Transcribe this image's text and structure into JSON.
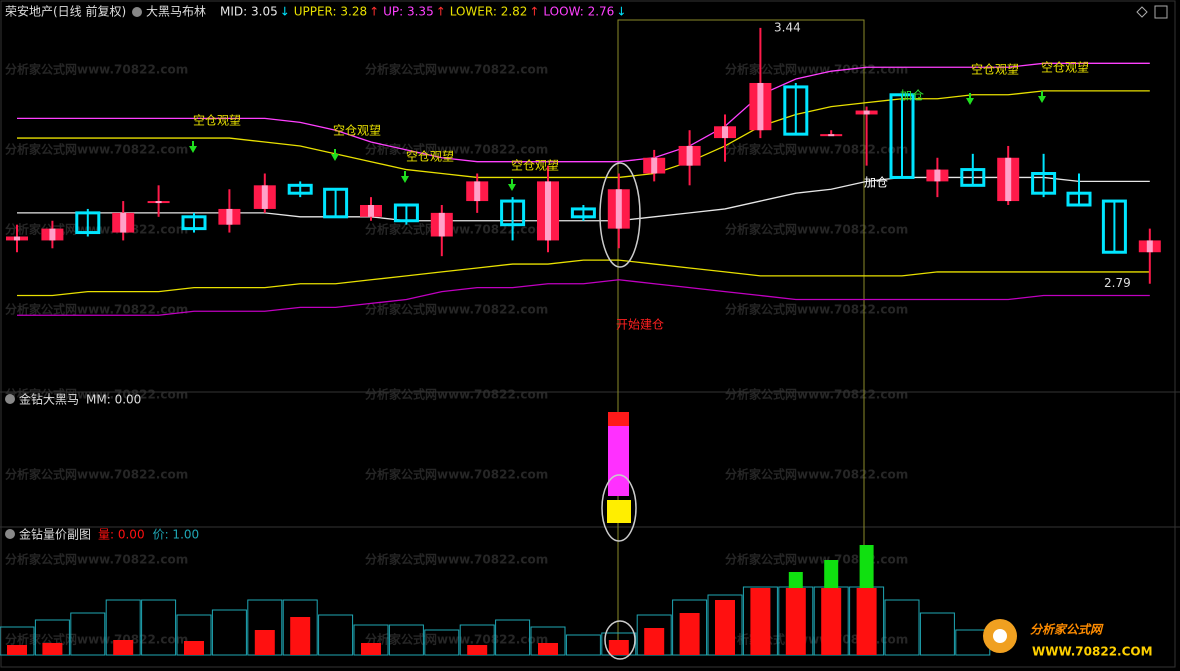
{
  "header": {
    "stock": "荣安地产(日线 前复权)",
    "indicator": "大黑马布林"
  },
  "watermark": "分析家公式网www.70822.com",
  "logo": {
    "name": "分析家公式网",
    "url": "WWW.70822.COM"
  },
  "chart_data": [
    {
      "type": "candlestick",
      "ylim": [
        2.52,
        3.46
      ],
      "high_label": 3.44,
      "low_label": 2.79,
      "open": [
        2.9,
        2.9,
        2.97,
        2.92,
        3.0,
        2.96,
        2.94,
        2.98,
        3.04,
        3.03,
        2.96,
        2.99,
        2.91,
        3.0,
        3.0,
        2.9,
        2.98,
        2.93,
        3.07,
        3.09,
        3.16,
        3.18,
        3.29,
        3.17,
        3.22,
        3.27,
        3.05,
        3.08,
        3.0,
        3.07,
        3.02,
        3.0,
        2.87
      ],
      "high": [
        2.94,
        2.95,
        2.98,
        3.0,
        3.04,
        2.97,
        3.03,
        3.07,
        3.05,
        3.03,
        3.01,
        2.99,
        2.99,
        3.07,
        3.01,
        3.09,
        2.99,
        3.07,
        3.13,
        3.18,
        3.22,
        3.44,
        3.3,
        3.18,
        3.24,
        3.27,
        3.11,
        3.12,
        3.14,
        3.12,
        3.07,
        3.0,
        2.93
      ],
      "low": [
        2.87,
        2.88,
        2.91,
        2.9,
        2.96,
        2.92,
        2.92,
        2.97,
        3.01,
        2.96,
        2.95,
        2.94,
        2.86,
        2.97,
        2.9,
        2.87,
        2.95,
        2.88,
        3.05,
        3.04,
        3.1,
        3.16,
        3.17,
        3.17,
        3.09,
        3.06,
        3.01,
        3.04,
        2.99,
        3.01,
        2.99,
        2.87,
        2.79
      ],
      "close": [
        2.91,
        2.93,
        2.92,
        2.97,
        3.0,
        2.93,
        2.98,
        3.04,
        3.02,
        2.96,
        2.99,
        2.95,
        2.97,
        3.05,
        2.94,
        3.05,
        2.96,
        3.03,
        3.11,
        3.14,
        3.19,
        3.3,
        3.17,
        3.17,
        3.23,
        3.06,
        3.08,
        3.04,
        3.11,
        3.02,
        2.99,
        2.87,
        2.9
      ],
      "up_color": "#ff1a4a",
      "down_color": "#00e5ff",
      "series": [
        {
          "label": "MID: 3.05",
          "arrow": "↓",
          "arrow_color": "#00e5ff",
          "color": "#e6e6e6",
          "values": [
            2.97,
            2.97,
            2.97,
            2.97,
            2.97,
            2.97,
            2.97,
            2.97,
            2.96,
            2.96,
            2.96,
            2.95,
            2.95,
            2.95,
            2.95,
            2.95,
            2.95,
            2.95,
            2.96,
            2.97,
            2.98,
            3.0,
            3.02,
            3.03,
            3.05,
            3.06,
            3.06,
            3.06,
            3.06,
            3.06,
            3.05,
            3.05,
            3.05
          ]
        },
        {
          "label": "UPPER: 3.28",
          "arrow": "↑",
          "arrow_color": "#ff3030",
          "color": "#e8e000",
          "values": [
            3.16,
            3.16,
            3.16,
            3.16,
            3.16,
            3.16,
            3.16,
            3.15,
            3.14,
            3.12,
            3.1,
            3.08,
            3.07,
            3.06,
            3.06,
            3.06,
            3.06,
            3.06,
            3.07,
            3.1,
            3.14,
            3.19,
            3.22,
            3.24,
            3.25,
            3.26,
            3.26,
            3.27,
            3.27,
            3.28,
            3.28,
            3.28,
            3.28
          ]
        },
        {
          "label": "UP: 3.35",
          "arrow": "↑",
          "arrow_color": "#ff3030",
          "color": "#ff40ff",
          "values": [
            3.21,
            3.21,
            3.21,
            3.21,
            3.21,
            3.21,
            3.21,
            3.21,
            3.2,
            3.18,
            3.15,
            3.13,
            3.11,
            3.1,
            3.1,
            3.1,
            3.1,
            3.1,
            3.11,
            3.14,
            3.19,
            3.27,
            3.31,
            3.33,
            3.34,
            3.34,
            3.34,
            3.34,
            3.34,
            3.35,
            3.35,
            3.35,
            3.35
          ]
        },
        {
          "label": "LOWER: 2.82",
          "arrow": "↑",
          "arrow_color": "#ff3030",
          "color": "#e8e000",
          "values": [
            2.76,
            2.76,
            2.77,
            2.77,
            2.77,
            2.78,
            2.78,
            2.78,
            2.79,
            2.79,
            2.8,
            2.81,
            2.82,
            2.83,
            2.84,
            2.84,
            2.85,
            2.85,
            2.84,
            2.83,
            2.82,
            2.81,
            2.81,
            2.81,
            2.81,
            2.81,
            2.82,
            2.82,
            2.82,
            2.82,
            2.82,
            2.82,
            2.82
          ]
        },
        {
          "label": "LOOW: 2.76",
          "arrow": "↓",
          "arrow_color": "#00e5ff",
          "color": "#c000c0",
          "values": [
            2.71,
            2.71,
            2.71,
            2.71,
            2.71,
            2.72,
            2.72,
            2.72,
            2.73,
            2.73,
            2.74,
            2.75,
            2.77,
            2.78,
            2.78,
            2.79,
            2.79,
            2.8,
            2.79,
            2.78,
            2.77,
            2.76,
            2.75,
            2.75,
            2.75,
            2.75,
            2.75,
            2.75,
            2.75,
            2.76,
            2.76,
            2.76,
            2.76
          ]
        }
      ],
      "annotations": [
        "空仓观望",
        "空仓观望",
        "空仓观望",
        "空仓观望",
        "空仓观望",
        "空仓观望",
        "开始建仓",
        "加仓",
        "加仓"
      ]
    },
    {
      "type": "signal",
      "title": "金钻大黑马",
      "label": "MM: 0.00"
    },
    {
      "type": "volume",
      "title": "金钻量价副图",
      "ylim": [
        0,
        110
      ],
      "series": [
        {
          "name": "量: 0.00",
          "color": "#ff1010",
          "values": [
            10,
            12,
            null,
            15,
            null,
            14,
            null,
            25,
            38,
            null,
            12,
            null,
            null,
            10,
            null,
            12,
            null,
            15,
            27,
            42,
            55,
            67,
            67,
            67,
            67,
            null,
            null,
            null,
            null,
            null,
            null,
            null,
            null
          ]
        },
        {
          "name": "价: 1.00",
          "color": "#1fa7b5",
          "values": [
            28,
            35,
            42,
            55,
            55,
            40,
            45,
            55,
            55,
            40,
            30,
            30,
            25,
            30,
            35,
            28,
            20,
            22,
            40,
            55,
            60,
            68,
            68,
            68,
            68,
            55,
            42,
            25,
            null,
            null,
            null,
            null,
            null
          ]
        }
      ],
      "highlight": {
        "color": "#10e010",
        "values": [
          null,
          null,
          null,
          null,
          null,
          null,
          null,
          null,
          null,
          null,
          null,
          null,
          null,
          null,
          null,
          null,
          null,
          null,
          null,
          null,
          null,
          null,
          16,
          28,
          43,
          null,
          null,
          null,
          null,
          null,
          null,
          null,
          null
        ]
      }
    }
  ]
}
